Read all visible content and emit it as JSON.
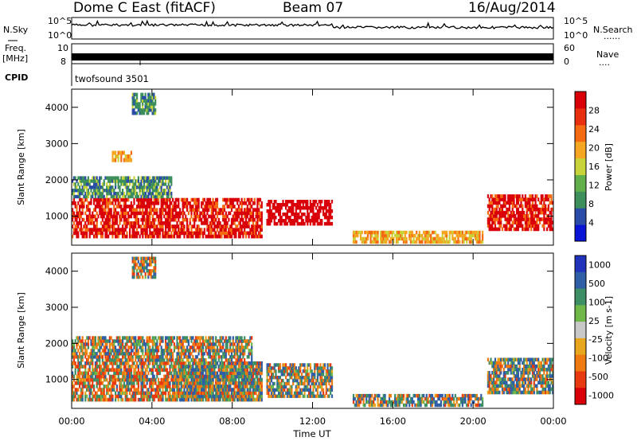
{
  "header": {
    "radar": "Dome C East (fitACF)",
    "beam": "Beam 07",
    "date": "16/Aug/2014"
  },
  "noise": {
    "left_label": "N.Sky",
    "right_label": "N.Search",
    "right_dots": "......",
    "tick_hi": "10^5",
    "tick_lo": "10^0"
  },
  "freq": {
    "label_line1": "Freq.",
    "label_line2": "[MHz]",
    "tick_left_hi": "10",
    "tick_left_lo": "8",
    "nave_label": "Nave",
    "nave_dots": "....",
    "tick_right_hi": "60",
    "tick_right_lo": "0"
  },
  "cpid": {
    "label": "CPID",
    "program": "twofsound 3501"
  },
  "colors": {
    "axis": "#000000",
    "power_scale": [
      "#0a14d4",
      "#2a4ba8",
      "#3d8f5c",
      "#62b04c",
      "#c9d33a",
      "#f5a623",
      "#f56b12",
      "#e8300e",
      "#d9000a"
    ],
    "velocity_scale": [
      "#2233bb",
      "#2f5ea6",
      "#3f8f66",
      "#70b84a",
      "#c8c8c8",
      "#e8a51e",
      "#f07a12",
      "#e83a10",
      "#d9000a"
    ]
  },
  "chart_data": [
    {
      "type": "heatmap",
      "name": "power",
      "ylabel": "Slant Range [km]",
      "xlabel": "",
      "ylim": [
        200,
        4500
      ],
      "y_ticks": [
        "1000",
        "2000",
        "3000",
        "4000"
      ],
      "x_ticks": [
        "00:00",
        "04:00",
        "08:00",
        "12:00",
        "16:00",
        "20:00",
        "00:00"
      ],
      "colorbar_label": "Power [dB]",
      "colorbar_ticks": [
        "4",
        "8",
        "12",
        "16",
        "20",
        "24",
        "28"
      ],
      "regions": [
        {
          "t0": 0.0,
          "t1": 9.5,
          "r0": 400,
          "r1": 1500,
          "level": 24
        },
        {
          "t0": 9.7,
          "t1": 13.0,
          "r0": 750,
          "r1": 1450,
          "level": 28
        },
        {
          "t0": 0.0,
          "t1": 5.0,
          "r0": 1500,
          "r1": 2100,
          "level": 8
        },
        {
          "t0": 14.0,
          "t1": 20.5,
          "r0": 250,
          "r1": 600,
          "level": 16
        },
        {
          "t0": 20.7,
          "t1": 24.0,
          "r0": 600,
          "r1": 1600,
          "level": 24
        },
        {
          "t0": 3.0,
          "t1": 4.2,
          "r0": 3800,
          "r1": 4400,
          "level": 8
        },
        {
          "t0": 2.0,
          "t1": 3.0,
          "r0": 2500,
          "r1": 2800,
          "level": 16
        }
      ]
    },
    {
      "type": "heatmap",
      "name": "velocity",
      "ylabel": "Slant Range [km]",
      "xlabel": "Time UT",
      "ylim": [
        200,
        4500
      ],
      "y_ticks": [
        "1000",
        "2000",
        "3000",
        "4000"
      ],
      "x_ticks": [
        "00:00",
        "04:00",
        "08:00",
        "12:00",
        "16:00",
        "20:00",
        "00:00"
      ],
      "colorbar_label": "Velocity [m s-1]",
      "colorbar_ticks": [
        "1000",
        "500",
        "100",
        "25",
        "-25",
        "-100",
        "-500",
        "-1000"
      ],
      "regions": [
        {
          "t0": 0.0,
          "t1": 9.5,
          "r0": 400,
          "r1": 1500,
          "level": -100
        },
        {
          "t0": 5.0,
          "t1": 9.5,
          "r0": 400,
          "r1": 1500,
          "level": 100
        },
        {
          "t0": 9.7,
          "t1": 13.0,
          "r0": 500,
          "r1": 1450,
          "level": 100
        },
        {
          "t0": 0.0,
          "t1": 9.0,
          "r0": 1500,
          "r1": 2200,
          "level": 25
        },
        {
          "t0": 14.0,
          "t1": 20.5,
          "r0": 250,
          "r1": 600,
          "level": 100
        },
        {
          "t0": 20.7,
          "t1": 24.0,
          "r0": 600,
          "r1": 1600,
          "level": 100
        },
        {
          "t0": 3.0,
          "t1": 4.2,
          "r0": 3800,
          "r1": 4400,
          "level": 25
        }
      ]
    }
  ]
}
